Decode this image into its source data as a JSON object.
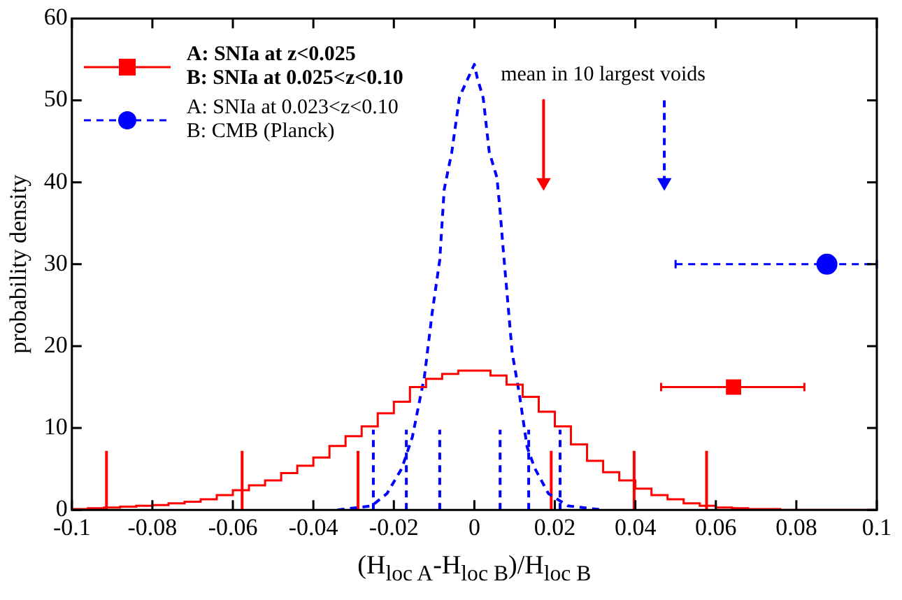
{
  "chart_data": {
    "type": "line",
    "xlabel": "(H$_{loc A}$-H$_{loc B}$)/H$_{loc B}$",
    "ylabel": "probability density",
    "xlim": [
      -0.1,
      0.1
    ],
    "xticks": [
      -0.1,
      -0.08,
      -0.06,
      -0.04,
      -0.02,
      0,
      0.02,
      0.04,
      0.06,
      0.08,
      0.1
    ],
    "ylim": [
      0,
      60
    ],
    "yticks": [
      0,
      10,
      20,
      30,
      40,
      50,
      60
    ],
    "grid": false,
    "legend": "top left",
    "annotations": [
      "mean in 10 largest voids"
    ],
    "series": [
      {
        "type": "histogram",
        "color": "#ff0000",
        "bins": [
          -0.1,
          -0.096,
          -0.092,
          -0.088,
          -0.084,
          -0.08,
          -0.076,
          -0.072,
          -0.068,
          -0.064,
          -0.06,
          -0.056,
          -0.052,
          -0.048,
          -0.044,
          -0.04,
          -0.036,
          -0.032,
          -0.028,
          -0.024,
          -0.02,
          -0.016,
          -0.012,
          -0.008,
          -0.004,
          0,
          0.004,
          0.008,
          0.012,
          0.016,
          0.02,
          0.024,
          0.028,
          0.032,
          0.036,
          0.04,
          0.044,
          0.048,
          0.052,
          0.056,
          0.06,
          0.064,
          0.068,
          0.072,
          0.076,
          0.08,
          0.084,
          0.088,
          0.092,
          0.096,
          0.1
        ],
        "values": [
          0.1,
          0.2,
          0.3,
          0.4,
          0.5,
          0.6,
          0.8,
          1.0,
          1.3,
          1.8,
          2.4,
          3.0,
          3.6,
          4.5,
          5.4,
          6.4,
          7.8,
          9.0,
          10.2,
          11.8,
          13.2,
          15.0,
          16.0,
          16.6,
          17.0,
          17.0,
          16.4,
          15.3,
          13.8,
          12.0,
          10.2,
          8.0,
          6.0,
          4.6,
          3.6,
          2.6,
          1.8,
          1.3,
          0.8,
          0.5,
          0.3,
          0.2,
          0.1,
          0.1,
          0,
          0,
          0,
          0,
          0,
          0
        ]
      },
      {
        "color": "#0000ff",
        "line_style": "dashed",
        "marker": "none",
        "x": [
          -0.034,
          -0.0255,
          -0.0217,
          -0.018,
          -0.0154,
          -0.0124,
          -0.0105,
          -0.0086,
          -0.0075,
          -0.0056,
          -0.0037,
          0,
          0.0007,
          0.0022,
          0.0037,
          0.0056,
          0.0064,
          0.0071,
          0.0094,
          0.0112,
          0.0131,
          0.015,
          0.0184,
          0.0232,
          0.032
        ],
        "values": [
          0,
          0.5,
          2.0,
          5.1,
          8.9,
          16.3,
          24,
          30.5,
          39.1,
          43.7,
          50.4,
          54.4,
          52.8,
          50.3,
          43.7,
          40.6,
          36.5,
          32.2,
          19.2,
          14.1,
          7.7,
          5.1,
          2.0,
          0.5,
          0
        ]
      },
      {
        "color": "#ff0000",
        "line_style": "solid",
        "marker": "none",
        "x": [
          -0.0914,
          -0.0914
        ],
        "values": [
          0,
          7.2
        ]
      },
      {
        "color": "#ff0000",
        "line_style": "solid",
        "marker": "none",
        "x": [
          -0.0577,
          -0.0577
        ],
        "values": [
          0,
          7.2
        ]
      },
      {
        "color": "#ff0000",
        "line_style": "solid",
        "marker": "none",
        "x": [
          -0.0289,
          -0.0289
        ],
        "values": [
          0,
          7.2
        ]
      },
      {
        "color": "#ff0000",
        "line_style": "solid",
        "marker": "none",
        "x": [
          0.0191,
          0.0191
        ],
        "values": [
          0,
          7.2
        ]
      },
      {
        "color": "#ff0000",
        "line_style": "solid",
        "marker": "none",
        "x": [
          0.0397,
          0.0397
        ],
        "values": [
          0,
          7.2
        ]
      },
      {
        "color": "#ff0000",
        "line_style": "solid",
        "marker": "none",
        "x": [
          0.0577,
          0.0577
        ],
        "values": [
          0,
          7.2
        ]
      },
      {
        "color": "#0000ff",
        "line_style": "dashed",
        "marker": "none",
        "x": [
          -0.0251,
          -0.0251
        ],
        "values": [
          0,
          9.8
        ]
      },
      {
        "color": "#0000ff",
        "line_style": "dashed",
        "marker": "none",
        "x": [
          -0.0169,
          -0.0169
        ],
        "values": [
          0,
          9.8
        ]
      },
      {
        "color": "#0000ff",
        "line_style": "dashed",
        "marker": "none",
        "x": [
          -0.0086,
          -0.0086
        ],
        "values": [
          0,
          9.8
        ]
      },
      {
        "color": "#0000ff",
        "line_style": "dashed",
        "marker": "none",
        "x": [
          0.0064,
          0.0064
        ],
        "values": [
          0,
          9.8
        ]
      },
      {
        "color": "#0000ff",
        "line_style": "dashed",
        "marker": "none",
        "x": [
          0.0135,
          0.0135
        ],
        "values": [
          0,
          9.8
        ]
      },
      {
        "color": "#0000ff",
        "line_style": "dashed",
        "marker": "none",
        "x": [
          0.0213,
          0.0213
        ],
        "values": [
          0,
          9.8
        ]
      },
      {
        "color": "#ff0000",
        "line_style": "solid",
        "marker": "triangle",
        "x": [
          0.0172,
          0.0172
        ],
        "values": [
          50,
          40
        ]
      },
      {
        "color": "#0000ff",
        "line_style": "dashed",
        "marker": "triangle",
        "x": [
          0.0472,
          0.0472
        ],
        "values": [
          50,
          40
        ]
      },
      {
        "type": "scatter",
        "name": "A: SNIa at z<0.025\nB: SNIa at 0.025<z<0.10",
        "color": "#ff0000",
        "marker": "square",
        "line_style": "solid",
        "x": [
          0.0644
        ],
        "values": [
          15
        ],
        "xerrors": [
          [
            0.0464,
            0.082
          ]
        ]
      },
      {
        "type": "scatter",
        "name": "A: SNIa at 0.023<z<0.10\nB: CMB (Planck)",
        "color": "#0000ff",
        "marker": "circle",
        "line_style": "dashed",
        "x": [
          0.0876
        ],
        "values": [
          30
        ],
        "xerrors": [
          [
            0.05,
            0.1
          ]
        ]
      }
    ]
  }
}
